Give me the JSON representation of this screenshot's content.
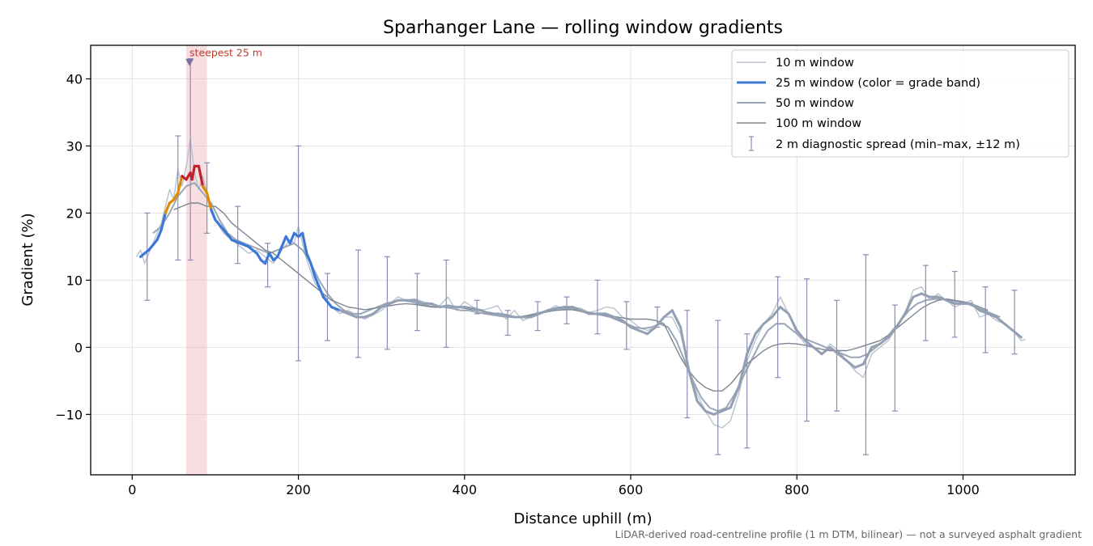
{
  "chart_data": {
    "type": "line",
    "title": "Sparhanger Lane — rolling window gradients",
    "xlabel": "Distance uphill (m)",
    "ylabel": "Gradient (%)",
    "xlim": [
      -50,
      1135
    ],
    "ylim": [
      -19,
      45
    ],
    "x_ticks": [
      0,
      200,
      400,
      600,
      800,
      1000
    ],
    "y_ticks": [
      -10,
      0,
      10,
      20,
      30,
      40
    ],
    "y_tick_labels": [
      "−10",
      "0",
      "10",
      "20",
      "30",
      "40"
    ],
    "grid": true,
    "legend_position": "top-right",
    "note": "LiDAR-derived road-centreline profile (1 m DTM, bilinear) — not a surveyed asphalt gradient",
    "highlight": {
      "x_start": 65,
      "x_end": 90,
      "color": "#e8a0a8"
    },
    "annotation": {
      "text": "steepest 25 m",
      "x": 69,
      "y": 42.5,
      "color": "#c0392b"
    },
    "colors": {
      "w10": "#b8c2d0",
      "w25_mild": "#3b78d8",
      "w25_steep": "#e08a00",
      "w25_severe": "#c0212f",
      "w25_neutral": "#93a0b3",
      "w50": "#9aa6b6",
      "w100": "#7d8591",
      "errorbar": "#8c8cb4"
    },
    "series": [
      {
        "name": "10 m window",
        "x": [
          5,
          10,
          15,
          20,
          25,
          30,
          35,
          40,
          45,
          50,
          55,
          60,
          65,
          70,
          72,
          75,
          80,
          85,
          90,
          95,
          100,
          110,
          120,
          130,
          140,
          150,
          160,
          170,
          180,
          190,
          195,
          200,
          205,
          210,
          220,
          230,
          240,
          250,
          260,
          270,
          280,
          290,
          300,
          310,
          320,
          330,
          340,
          350,
          360,
          370,
          380,
          390,
          400,
          410,
          420,
          430,
          440,
          450,
          460,
          470,
          480,
          490,
          500,
          510,
          520,
          530,
          540,
          550,
          560,
          570,
          580,
          590,
          600,
          610,
          620,
          630,
          640,
          650,
          660,
          670,
          680,
          690,
          700,
          710,
          720,
          730,
          740,
          750,
          760,
          770,
          780,
          790,
          800,
          810,
          820,
          830,
          840,
          850,
          860,
          870,
          880,
          890,
          900,
          910,
          920,
          930,
          940,
          950,
          960,
          970,
          980,
          990,
          1000,
          1010,
          1020,
          1030,
          1040,
          1050,
          1060,
          1070,
          1075
        ],
        "y": [
          13.5,
          14.5,
          12.5,
          14.0,
          15.5,
          17.0,
          18.5,
          21.0,
          23.5,
          22.0,
          26.5,
          24.0,
          27.0,
          31.0,
          29.0,
          26.0,
          23.5,
          25.5,
          23.0,
          21.0,
          19.0,
          17.0,
          16.0,
          15.0,
          14.0,
          14.5,
          13.5,
          12.5,
          14.5,
          16.0,
          15.5,
          18.0,
          15.5,
          13.0,
          9.5,
          8.0,
          6.0,
          5.0,
          5.5,
          4.8,
          4.2,
          4.8,
          5.5,
          6.5,
          7.5,
          7.0,
          7.2,
          6.8,
          6.5,
          6.2,
          7.5,
          5.5,
          6.8,
          6.0,
          5.5,
          5.8,
          6.2,
          4.2,
          5.5,
          4.0,
          4.5,
          5.0,
          5.5,
          6.2,
          5.5,
          6.0,
          5.8,
          5.2,
          5.5,
          6.0,
          5.8,
          4.5,
          4.0,
          3.0,
          2.5,
          3.0,
          4.5,
          4.5,
          2.0,
          -3.0,
          -7.0,
          -9.5,
          -11.5,
          -12.0,
          -11.0,
          -7.0,
          -2.0,
          1.0,
          3.5,
          5.0,
          7.5,
          5.0,
          2.0,
          0.5,
          0.0,
          -1.0,
          0.5,
          -0.5,
          -2.0,
          -3.5,
          -4.5,
          -1.0,
          0.0,
          1.0,
          3.0,
          5.0,
          8.5,
          9.0,
          7.0,
          8.0,
          7.0,
          6.0,
          6.5,
          7.0,
          4.5,
          5.0,
          4.0,
          3.5,
          2.5,
          1.0,
          1.2
        ]
      },
      {
        "name": "25 m window (color = grade band)",
        "x": [
          10,
          20,
          30,
          35,
          40,
          45,
          50,
          55,
          60,
          65,
          70,
          72,
          75,
          80,
          85,
          90,
          95,
          100,
          110,
          120,
          130,
          140,
          150,
          155,
          160,
          165,
          170,
          175,
          180,
          185,
          190,
          195,
          200,
          205,
          210,
          215,
          220,
          230,
          240,
          250,
          260,
          270,
          280,
          290,
          300,
          310,
          320,
          330,
          340,
          350,
          360,
          370,
          380,
          390,
          400,
          410,
          420,
          430,
          440,
          450,
          460,
          470,
          480,
          490,
          500,
          510,
          520,
          530,
          540,
          550,
          560,
          570,
          580,
          590,
          600,
          610,
          620,
          630,
          640,
          650,
          660,
          670,
          680,
          690,
          700,
          710,
          720,
          730,
          740,
          750,
          760,
          770,
          780,
          790,
          800,
          810,
          820,
          830,
          840,
          850,
          860,
          870,
          880,
          890,
          900,
          910,
          920,
          930,
          940,
          950,
          960,
          970,
          980,
          990,
          1000,
          1010,
          1020,
          1030,
          1040,
          1050,
          1060,
          1070
        ],
        "y": [
          13.5,
          14.5,
          16.0,
          17.5,
          20.0,
          21.5,
          22.0,
          23.0,
          25.5,
          25.0,
          26.0,
          25.0,
          27.0,
          27.0,
          24.0,
          23.0,
          20.5,
          19.0,
          17.5,
          16.0,
          15.5,
          15.0,
          14.0,
          13.0,
          12.5,
          14.0,
          13.0,
          13.5,
          15.0,
          16.5,
          15.5,
          17.0,
          16.5,
          17.0,
          14.0,
          12.5,
          10.5,
          7.5,
          6.0,
          5.5,
          5.0,
          4.5,
          4.5,
          5.0,
          6.0,
          6.5,
          7.0,
          7.0,
          7.0,
          6.5,
          6.5,
          6.0,
          6.2,
          6.0,
          6.0,
          5.8,
          5.5,
          5.0,
          5.0,
          4.8,
          4.5,
          4.5,
          4.5,
          5.0,
          5.5,
          5.8,
          6.0,
          6.0,
          5.5,
          5.0,
          5.0,
          5.0,
          4.5,
          4.0,
          3.0,
          2.5,
          2.0,
          3.0,
          4.5,
          5.5,
          3.0,
          -3.5,
          -8.0,
          -9.5,
          -10.0,
          -9.5,
          -9.0,
          -6.0,
          -1.0,
          2.0,
          3.5,
          4.5,
          6.0,
          5.0,
          2.5,
          1.0,
          0.0,
          -1.0,
          0.0,
          -1.0,
          -2.0,
          -3.0,
          -2.5,
          0.0,
          0.5,
          1.5,
          3.0,
          5.0,
          7.5,
          8.0,
          7.5,
          7.5,
          7.0,
          6.5,
          6.5,
          6.5,
          5.5,
          5.0,
          4.5,
          3.5,
          2.5,
          1.5
        ]
      },
      {
        "name": "50 m window",
        "x": [
          25,
          35,
          45,
          55,
          65,
          75,
          85,
          95,
          105,
          115,
          125,
          135,
          145,
          155,
          165,
          175,
          185,
          195,
          205,
          215,
          225,
          235,
          245,
          255,
          265,
          275,
          285,
          295,
          305,
          315,
          325,
          335,
          345,
          355,
          365,
          375,
          385,
          395,
          405,
          415,
          425,
          435,
          445,
          455,
          465,
          475,
          485,
          495,
          505,
          515,
          525,
          535,
          545,
          555,
          565,
          575,
          585,
          595,
          605,
          615,
          625,
          635,
          645,
          655,
          665,
          675,
          685,
          695,
          705,
          715,
          725,
          735,
          745,
          755,
          765,
          775,
          785,
          795,
          805,
          815,
          825,
          835,
          845,
          855,
          865,
          875,
          885,
          895,
          905,
          915,
          925,
          935,
          945,
          955,
          965,
          975,
          985,
          995,
          1005,
          1015,
          1025,
          1035,
          1045
        ],
        "y": [
          17.0,
          18.0,
          20.0,
          22.5,
          24.0,
          24.5,
          23.0,
          21.5,
          19.0,
          17.0,
          16.0,
          15.5,
          15.0,
          14.5,
          14.0,
          14.5,
          15.0,
          15.5,
          14.5,
          12.5,
          10.0,
          8.0,
          6.5,
          5.5,
          5.0,
          5.0,
          5.5,
          6.0,
          6.5,
          6.8,
          7.0,
          6.8,
          6.5,
          6.2,
          6.0,
          6.0,
          5.8,
          5.5,
          5.5,
          5.2,
          5.0,
          4.8,
          4.6,
          4.5,
          4.5,
          4.7,
          5.0,
          5.3,
          5.6,
          5.8,
          5.8,
          5.5,
          5.2,
          5.0,
          4.8,
          4.5,
          4.0,
          3.5,
          3.0,
          2.8,
          3.0,
          3.5,
          3.0,
          1.0,
          -2.0,
          -5.0,
          -7.5,
          -9.0,
          -9.5,
          -9.0,
          -7.0,
          -4.5,
          -2.0,
          0.5,
          2.5,
          3.5,
          3.5,
          2.5,
          1.5,
          1.0,
          0.5,
          0.0,
          -0.5,
          -1.0,
          -1.5,
          -1.5,
          -1.0,
          0.0,
          1.0,
          2.5,
          4.0,
          5.5,
          6.5,
          7.0,
          7.2,
          7.2,
          7.0,
          6.8,
          6.5,
          6.0,
          5.5,
          5.0,
          4.5
        ]
      },
      {
        "name": "100 m window",
        "x": [
          50,
          60,
          70,
          80,
          90,
          100,
          110,
          120,
          130,
          140,
          150,
          160,
          170,
          180,
          190,
          200,
          210,
          220,
          230,
          240,
          250,
          260,
          270,
          280,
          290,
          300,
          310,
          320,
          330,
          340,
          350,
          360,
          370,
          380,
          390,
          400,
          410,
          420,
          430,
          440,
          450,
          460,
          470,
          480,
          490,
          500,
          510,
          520,
          530,
          540,
          550,
          560,
          570,
          580,
          590,
          600,
          610,
          620,
          630,
          640,
          650,
          660,
          670,
          680,
          690,
          700,
          710,
          720,
          730,
          740,
          750,
          760,
          770,
          780,
          790,
          800,
          810,
          820,
          830,
          840,
          850,
          860,
          870,
          880,
          890,
          900,
          910,
          920,
          930,
          940,
          950,
          960,
          970,
          980,
          990,
          1000,
          1010,
          1020,
          1030
        ],
        "y": [
          20.5,
          21.0,
          21.5,
          21.5,
          21.0,
          21.0,
          20.0,
          18.5,
          17.5,
          16.5,
          15.5,
          14.5,
          14.0,
          13.0,
          12.0,
          11.0,
          10.0,
          9.0,
          8.0,
          7.0,
          6.5,
          6.0,
          5.8,
          5.6,
          5.8,
          6.0,
          6.2,
          6.4,
          6.5,
          6.4,
          6.2,
          6.0,
          6.0,
          6.2,
          6.0,
          5.8,
          5.6,
          5.4,
          5.2,
          5.0,
          4.8,
          4.6,
          4.6,
          4.8,
          5.0,
          5.3,
          5.5,
          5.6,
          5.6,
          5.4,
          5.2,
          5.0,
          4.8,
          4.6,
          4.4,
          4.2,
          4.2,
          4.2,
          4.0,
          3.5,
          1.0,
          -1.5,
          -3.5,
          -5.0,
          -6.0,
          -6.5,
          -6.5,
          -5.5,
          -4.0,
          -2.5,
          -1.5,
          -0.5,
          0.2,
          0.5,
          0.6,
          0.5,
          0.3,
          0.0,
          -0.3,
          -0.5,
          -0.5,
          -0.5,
          -0.2,
          0.2,
          0.6,
          1.0,
          1.8,
          2.8,
          3.8,
          4.8,
          5.8,
          6.5,
          7.0,
          7.2,
          7.0,
          6.8,
          6.5,
          6.0,
          5.5
        ]
      },
      {
        "name": "2 m diagnostic spread (min–max, ±12 m)",
        "x": [
          18,
          55,
          70,
          90,
          127,
          163,
          200,
          235,
          272,
          307,
          343,
          378,
          415,
          452,
          488,
          523,
          560,
          595,
          632,
          668,
          705,
          740,
          777,
          812,
          848,
          883,
          918,
          955,
          990,
          1027,
          1062
        ],
        "low": [
          7.0,
          13.0,
          13.0,
          17.0,
          12.5,
          9.0,
          -2.0,
          1.0,
          -1.5,
          -0.3,
          2.5,
          0.0,
          5.0,
          1.8,
          2.5,
          3.5,
          2.0,
          -0.3,
          3.0,
          -10.5,
          -16.0,
          -15.0,
          -4.5,
          -11.0,
          -9.5,
          -16.0,
          -9.5,
          1.0,
          1.5,
          -0.8,
          -1.0
        ],
        "high": [
          20.0,
          31.5,
          43.0,
          27.5,
          21.0,
          15.5,
          30.0,
          11.0,
          14.5,
          13.5,
          11.0,
          13.0,
          7.0,
          5.5,
          6.8,
          7.5,
          10.0,
          6.8,
          6.0,
          5.5,
          4.0,
          2.0,
          10.5,
          10.2,
          7.0,
          13.8,
          6.3,
          12.2,
          11.3,
          9.0,
          8.5
        ]
      }
    ]
  }
}
